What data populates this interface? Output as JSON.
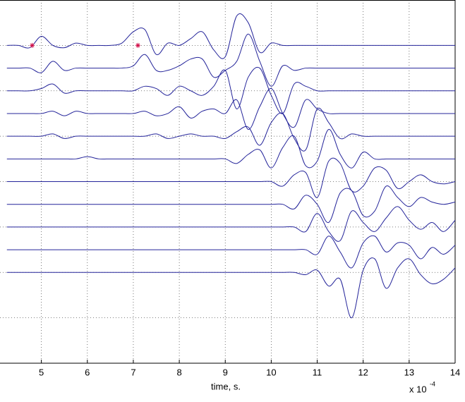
{
  "chart_data": {
    "type": "line",
    "xlabel": "time, s.",
    "x_exponent_base": "x 10",
    "x_exponent": "-4",
    "xlim": [
      4.1,
      14
    ],
    "xticks": [
      5,
      6,
      7,
      8,
      9,
      10,
      11,
      12,
      13,
      14
    ],
    "ylim": [
      0,
      16
    ],
    "yticks": [
      0,
      2,
      4,
      6,
      8,
      10,
      12,
      14,
      16
    ],
    "grid": true,
    "color": "#24249a",
    "x": [
      4.25,
      4.5,
      4.75,
      5.0,
      5.25,
      5.5,
      5.75,
      6.0,
      6.25,
      6.5,
      6.75,
      7.0,
      7.25,
      7.5,
      7.75,
      8.0,
      8.25,
      8.5,
      8.75,
      9.0,
      9.25,
      9.5,
      9.75,
      10.0,
      10.25,
      10.5,
      10.75,
      11.0,
      11.25,
      11.5,
      11.75,
      12.0,
      12.25,
      12.5,
      12.75,
      13.0,
      13.25,
      13.5,
      13.75,
      14.0
    ],
    "series": [
      {
        "values": [
          14,
          14,
          13.9,
          14.4,
          14.0,
          13.9,
          14.1,
          14.0,
          14.0,
          14.0,
          14.1,
          14.6,
          14.7,
          13.6,
          14.1,
          14.0,
          14.3,
          14.6,
          13.8,
          13.5,
          15.3,
          15.0,
          13.7,
          14.1,
          14.0,
          14,
          14,
          14,
          14,
          14,
          14,
          14,
          14,
          14,
          14,
          14,
          14,
          14,
          14,
          14
        ]
      },
      {
        "values": [
          13,
          13,
          13,
          12.8,
          13.3,
          12.9,
          13,
          13,
          13,
          13,
          13,
          13.1,
          13.6,
          12.9,
          12.9,
          13.1,
          13.4,
          13.4,
          12.6,
          12.9,
          13.3,
          14.5,
          13.3,
          12.2,
          13.1,
          12.9,
          13,
          13,
          13,
          13,
          13,
          13,
          13,
          13,
          13,
          13,
          13,
          13,
          13,
          13
        ]
      },
      {
        "values": [
          12,
          12,
          12,
          12.1,
          12.3,
          11.9,
          12,
          12,
          12,
          12,
          12,
          12,
          12.2,
          12.1,
          11.8,
          12.2,
          12.0,
          11.8,
          12.2,
          12.9,
          11.2,
          12.6,
          13.0,
          11.8,
          11.0,
          12.3,
          12.2,
          12,
          12,
          12,
          12,
          12,
          12,
          12,
          12,
          12,
          12,
          12,
          12,
          12
        ]
      },
      {
        "values": [
          11,
          11,
          11,
          11,
          11.1,
          10.9,
          11.1,
          11,
          11,
          11,
          11,
          11,
          11.1,
          10.9,
          11,
          11.3,
          10.8,
          11.1,
          11.2,
          11.0,
          11.6,
          10.3,
          11.3,
          12.1,
          11.0,
          10.4,
          11.6,
          11.2,
          11,
          11,
          11,
          11,
          11,
          11,
          11,
          11,
          11,
          11,
          11,
          11
        ]
      },
      {
        "values": [
          10,
          10,
          10,
          10,
          10.1,
          9.9,
          10,
          10,
          10,
          10,
          10,
          10,
          10,
          10.1,
          9.9,
          10,
          10.1,
          10,
          10,
          9.9,
          10.2,
          10.4,
          9.6,
          10.6,
          11.0,
          9.9,
          9.4,
          11.2,
          10.6,
          9.9,
          10.1,
          10,
          10,
          10,
          10,
          10,
          10,
          10,
          10,
          10
        ]
      },
      {
        "values": [
          9,
          9,
          9,
          9,
          9,
          9,
          9,
          9.1,
          9,
          9,
          9,
          9,
          9,
          9,
          9,
          9,
          9,
          9,
          9,
          9.0,
          8.8,
          9.2,
          9.4,
          8.6,
          9.5,
          10.0,
          8.7,
          8.9,
          10.3,
          9.2,
          8.6,
          9.3,
          9.0,
          9,
          9,
          9,
          9,
          9,
          9,
          9
        ]
      },
      {
        "values": [
          8,
          8,
          8,
          8,
          8,
          8,
          8,
          8,
          8,
          8,
          8,
          8,
          8,
          8,
          8,
          8,
          8,
          8,
          8,
          8,
          8,
          8,
          8,
          8.0,
          7.8,
          8.3,
          8.4,
          7.3,
          8.9,
          8.8,
          7.6,
          7.8,
          8.6,
          8.5,
          7.7,
          8.0,
          8.3,
          8.0,
          7.9,
          8.0
        ]
      },
      {
        "values": [
          7,
          7,
          7,
          7,
          7,
          7,
          7,
          7,
          7,
          7,
          7,
          7,
          7,
          7,
          7,
          7,
          7,
          7,
          7,
          7,
          7,
          7,
          7,
          7,
          7.0,
          6.8,
          7.4,
          7.0,
          6.2,
          7.5,
          7.6,
          6.5,
          6.7,
          7.8,
          7.3,
          6.9,
          7.3,
          7.1,
          7.0,
          7.1
        ]
      },
      {
        "values": [
          6,
          6,
          6,
          6,
          6,
          6,
          6,
          6,
          6,
          6,
          6,
          6,
          6,
          6,
          6,
          6,
          6,
          6,
          6,
          6,
          6,
          6,
          6,
          6,
          6,
          6.0,
          5.8,
          6.6,
          5.8,
          5.4,
          6.7,
          6.2,
          5.8,
          6.4,
          6.9,
          6.3,
          5.9,
          6.2,
          5.8,
          6.3
        ]
      },
      {
        "values": [
          5,
          5,
          5,
          5,
          5,
          5,
          5,
          5,
          5,
          5,
          5,
          5,
          5,
          5,
          5,
          5,
          5,
          5,
          5,
          5,
          5,
          5,
          5,
          5,
          5,
          5,
          5.0,
          4.8,
          5.6,
          4.9,
          4.2,
          5.3,
          5.6,
          4.9,
          5.3,
          5.2,
          4.6,
          5.1,
          4.8,
          5.2
        ]
      },
      {
        "values": [
          4,
          4,
          4,
          4,
          4,
          4,
          4,
          4,
          4,
          4,
          4,
          4,
          4,
          4,
          4,
          4,
          4,
          4,
          4,
          4,
          4,
          4,
          4,
          4,
          4,
          4,
          3.9,
          4.1,
          3.4,
          3.7,
          2.0,
          4.1,
          4.6,
          3.3,
          4.2,
          4.6,
          3.9,
          3.5,
          3.7,
          4.2
        ]
      }
    ],
    "markers": {
      "x": [
        4.8,
        7.1
      ],
      "y": [
        14,
        14
      ],
      "color": "#d0104a"
    }
  }
}
